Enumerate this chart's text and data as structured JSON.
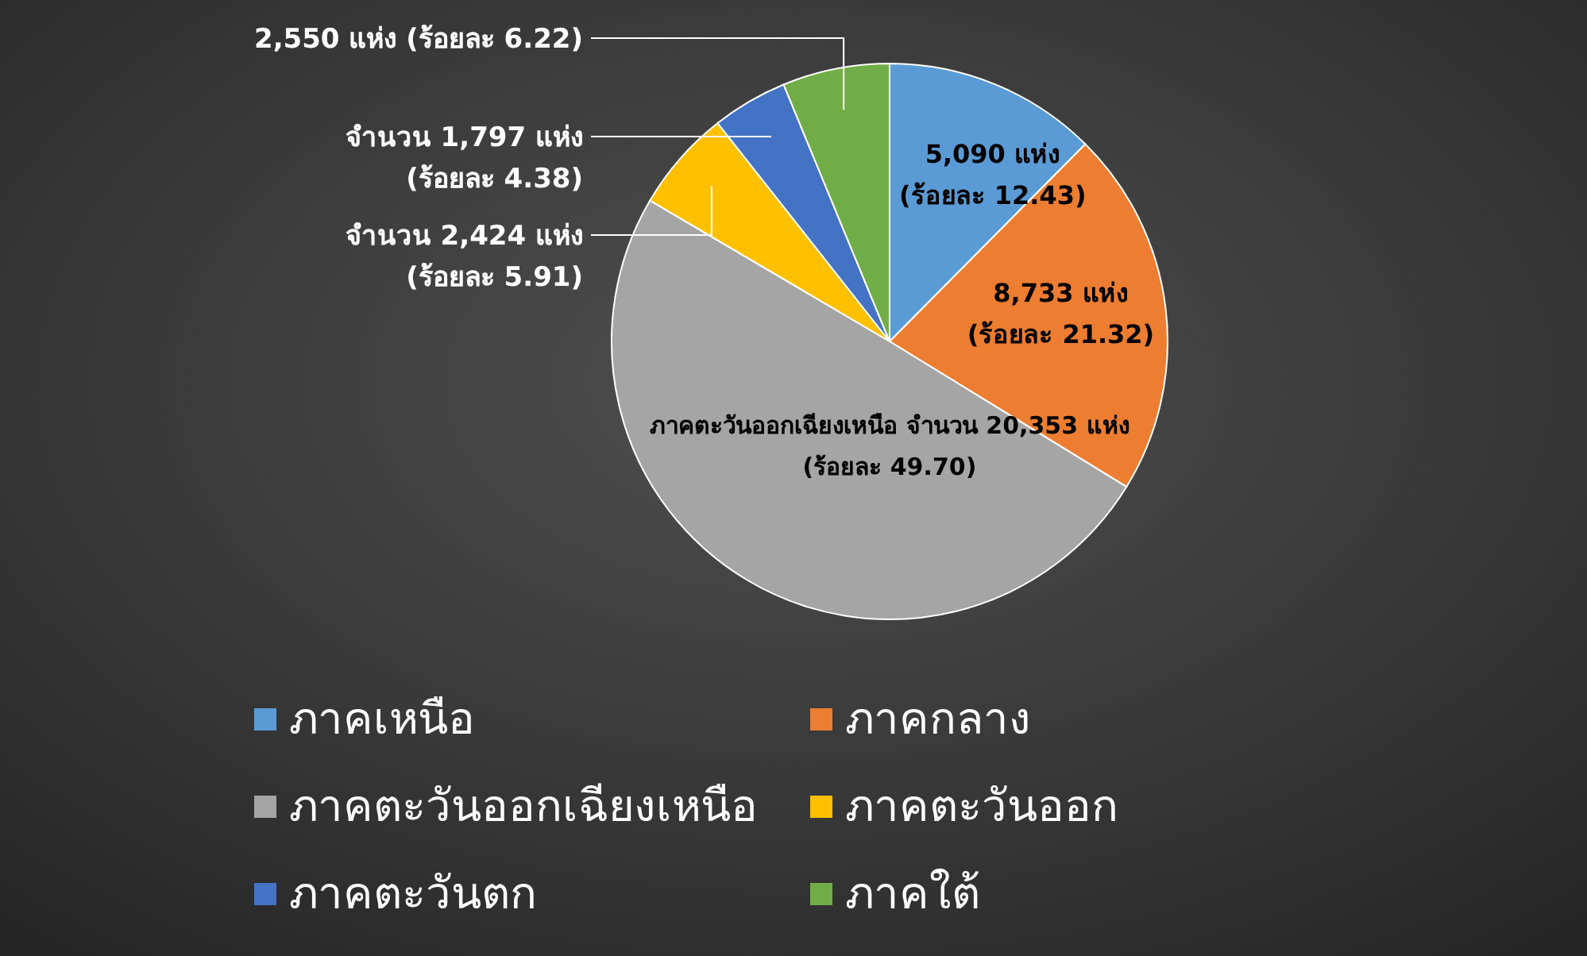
{
  "chart_data": {
    "type": "pie",
    "categories": [
      "ภาคเหนือ",
      "ภาคกลาง",
      "ภาคตะวันออกเฉียงเหนือ",
      "ภาคตะวันออก",
      "ภาคตะวันตก",
      "ภาคใต้"
    ],
    "values": [
      5090,
      8733,
      20353,
      2424,
      1797,
      2550
    ],
    "colors": [
      "#5b9bd5",
      "#ed7d31",
      "#a5a5a5",
      "#ffc000",
      "#4472c4",
      "#70ad47"
    ],
    "value_labels": [
      "5,090 แห่ง\n(ร้อยละ 12.43)",
      "8,733 แห่ง\n(ร้อยละ 21.32)",
      "ภาคตะวันออกเฉียงเหนือ จำนวน 20,353 แห่ง\n(ร้อยละ 49.70)",
      "จำนวน 2,424 แห่ง\n(ร้อยละ 5.91)",
      "จำนวน 1,797 แห่ง\n(ร้อยละ 4.38)",
      "2,550 แห่ง (ร้อยละ 6.22)"
    ],
    "legend": "bottom"
  }
}
